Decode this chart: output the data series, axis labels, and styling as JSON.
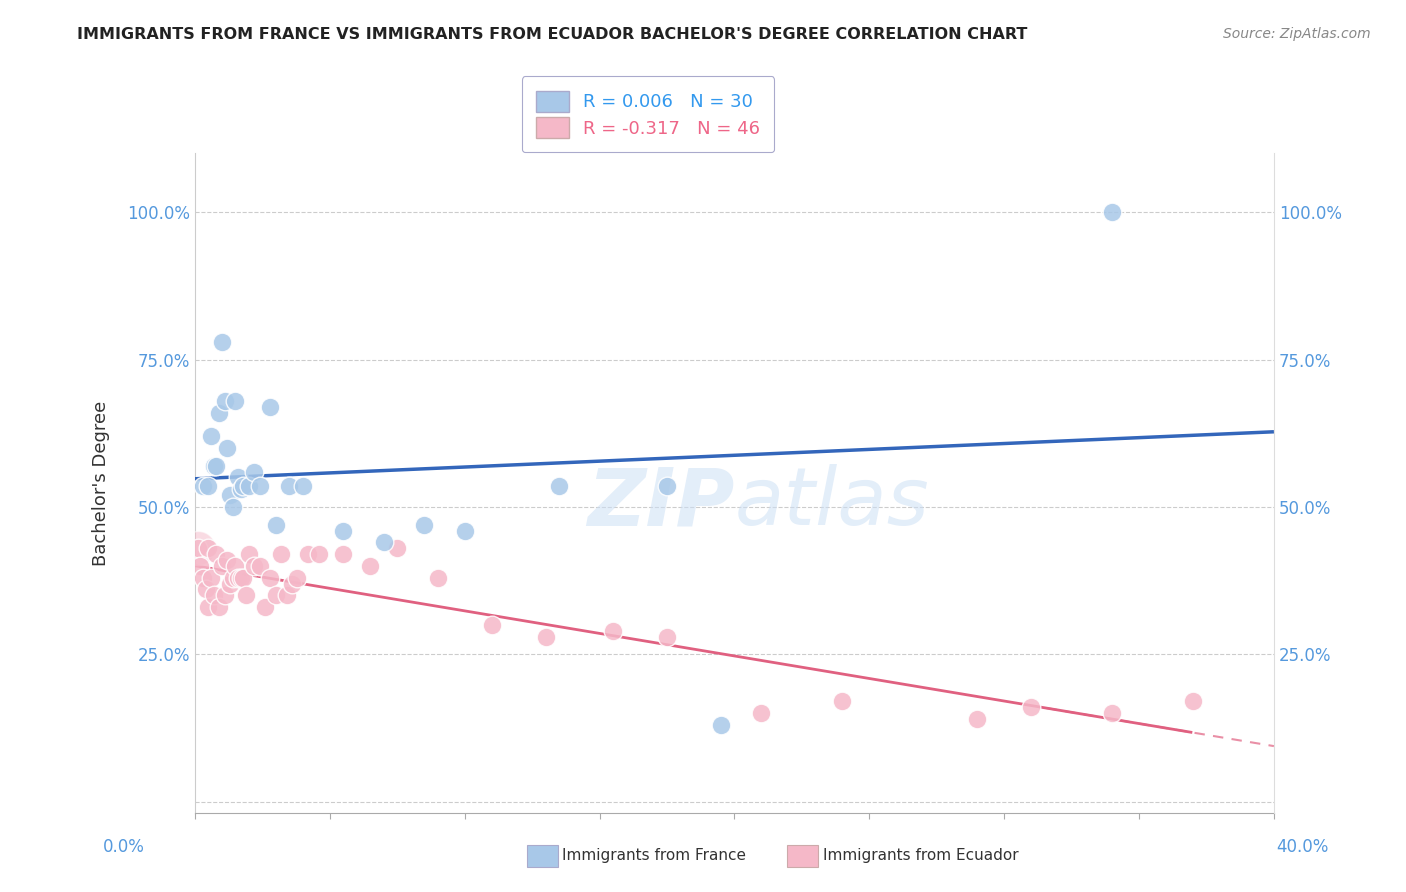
{
  "title": "IMMIGRANTS FROM FRANCE VS IMMIGRANTS FROM ECUADOR BACHELOR'S DEGREE CORRELATION CHART",
  "source": "Source: ZipAtlas.com",
  "ylabel": "Bachelor's Degree",
  "y_tick_labels": [
    "",
    "25.0%",
    "50.0%",
    "75.0%",
    "100.0%"
  ],
  "y_ticks": [
    0.0,
    0.25,
    0.5,
    0.75,
    1.0
  ],
  "x_range": [
    0.0,
    0.4
  ],
  "y_range": [
    -0.02,
    1.1
  ],
  "watermark": "ZIPatlas",
  "france_r": "0.006",
  "france_n": "30",
  "ecuador_r": "-0.317",
  "ecuador_n": "46",
  "france_color": "#a8c8e8",
  "ecuador_color": "#f5b8c8",
  "france_line_color": "#3366bb",
  "ecuador_line_color": "#e06080",
  "france_legend_color": "#3399ee",
  "ecuador_legend_color": "#ee6688",
  "france_points_x": [
    0.003,
    0.005,
    0.006,
    0.007,
    0.008,
    0.009,
    0.01,
    0.011,
    0.012,
    0.013,
    0.014,
    0.015,
    0.016,
    0.017,
    0.018,
    0.02,
    0.022,
    0.024,
    0.028,
    0.03,
    0.035,
    0.04,
    0.055,
    0.07,
    0.085,
    0.1,
    0.135,
    0.175,
    0.195,
    0.34
  ],
  "france_points_y": [
    0.535,
    0.535,
    0.62,
    0.57,
    0.57,
    0.66,
    0.78,
    0.68,
    0.6,
    0.52,
    0.5,
    0.68,
    0.55,
    0.53,
    0.535,
    0.535,
    0.56,
    0.535,
    0.67,
    0.47,
    0.535,
    0.535,
    0.46,
    0.44,
    0.47,
    0.46,
    0.535,
    0.535,
    0.13,
    1.0
  ],
  "ecuador_points_x": [
    0.001,
    0.002,
    0.003,
    0.004,
    0.005,
    0.005,
    0.006,
    0.007,
    0.008,
    0.009,
    0.01,
    0.011,
    0.012,
    0.013,
    0.014,
    0.015,
    0.016,
    0.017,
    0.018,
    0.019,
    0.02,
    0.022,
    0.024,
    0.026,
    0.028,
    0.03,
    0.032,
    0.034,
    0.036,
    0.038,
    0.042,
    0.046,
    0.055,
    0.065,
    0.075,
    0.09,
    0.11,
    0.13,
    0.155,
    0.175,
    0.21,
    0.24,
    0.29,
    0.31,
    0.34,
    0.37
  ],
  "ecuador_points_y": [
    0.43,
    0.4,
    0.38,
    0.36,
    0.43,
    0.33,
    0.38,
    0.35,
    0.42,
    0.33,
    0.4,
    0.35,
    0.41,
    0.37,
    0.38,
    0.4,
    0.38,
    0.38,
    0.38,
    0.35,
    0.42,
    0.4,
    0.4,
    0.33,
    0.38,
    0.35,
    0.42,
    0.35,
    0.37,
    0.38,
    0.42,
    0.42,
    0.42,
    0.4,
    0.43,
    0.38,
    0.3,
    0.28,
    0.29,
    0.28,
    0.15,
    0.17,
    0.14,
    0.16,
    0.15,
    0.17
  ]
}
